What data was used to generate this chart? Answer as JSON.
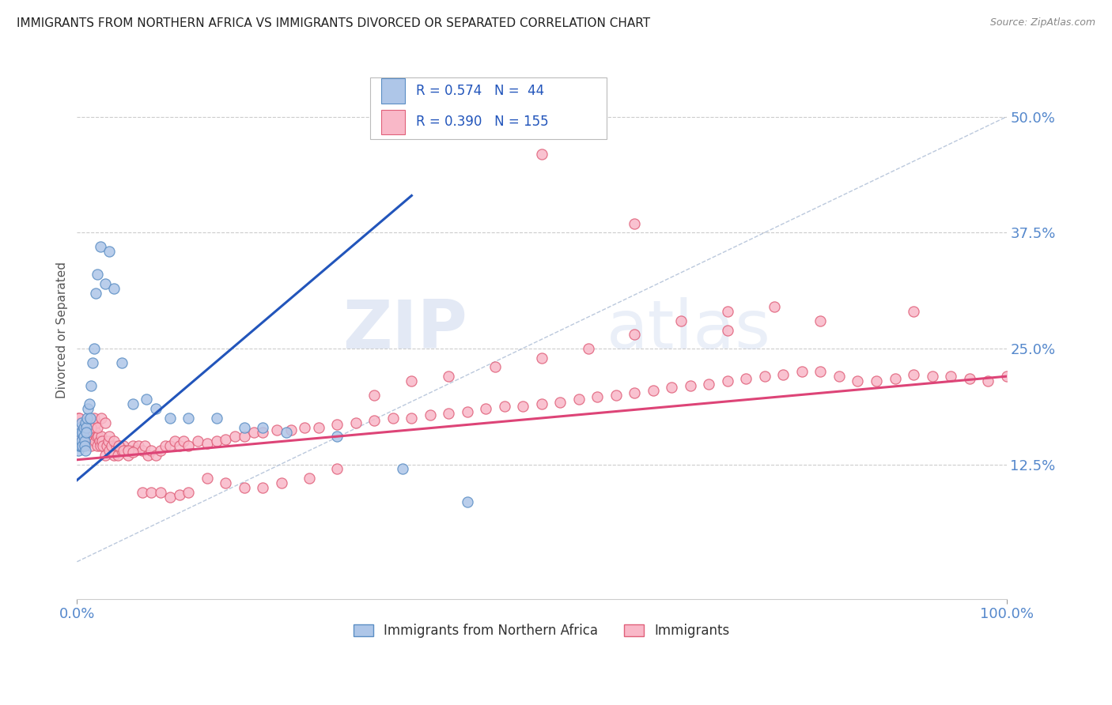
{
  "title": "IMMIGRANTS FROM NORTHERN AFRICA VS IMMIGRANTS DIVORCED OR SEPARATED CORRELATION CHART",
  "source": "Source: ZipAtlas.com",
  "ylabel": "Divorced or Separated",
  "xlim": [
    0,
    1.0
  ],
  "ylim": [
    -0.02,
    0.56
  ],
  "xticks": [
    0.0,
    1.0
  ],
  "xticklabels": [
    "0.0%",
    "100.0%"
  ],
  "yticks": [
    0.125,
    0.25,
    0.375,
    0.5
  ],
  "yticklabels": [
    "12.5%",
    "25.0%",
    "37.5%",
    "50.0%"
  ],
  "legend_label1": "Immigrants from Northern Africa",
  "legend_label2": "Immigrants",
  "watermark_zip": "ZIP",
  "watermark_atlas": "atlas",
  "blue_fill": "#aec6e8",
  "blue_edge": "#5b8ec4",
  "pink_fill": "#f9b8c8",
  "pink_edge": "#e0607a",
  "blue_line_color": "#2255bb",
  "pink_line_color": "#dd4477",
  "diag_color": "#aabbd4",
  "blue_scatter_x": [
    0.001,
    0.002,
    0.003,
    0.003,
    0.004,
    0.004,
    0.005,
    0.005,
    0.006,
    0.006,
    0.007,
    0.007,
    0.008,
    0.008,
    0.009,
    0.009,
    0.01,
    0.01,
    0.011,
    0.012,
    0.013,
    0.014,
    0.015,
    0.017,
    0.018,
    0.02,
    0.022,
    0.025,
    0.03,
    0.035,
    0.04,
    0.048,
    0.06,
    0.075,
    0.085,
    0.1,
    0.12,
    0.15,
    0.18,
    0.2,
    0.225,
    0.28,
    0.35,
    0.42
  ],
  "blue_scatter_y": [
    0.14,
    0.145,
    0.155,
    0.165,
    0.145,
    0.16,
    0.15,
    0.17,
    0.16,
    0.145,
    0.165,
    0.155,
    0.15,
    0.145,
    0.14,
    0.17,
    0.165,
    0.16,
    0.175,
    0.185,
    0.19,
    0.175,
    0.21,
    0.235,
    0.25,
    0.31,
    0.33,
    0.36,
    0.32,
    0.355,
    0.315,
    0.235,
    0.19,
    0.195,
    0.185,
    0.175,
    0.175,
    0.175,
    0.165,
    0.165,
    0.16,
    0.155,
    0.12,
    0.085
  ],
  "pink_scatter_x": [
    0.001,
    0.001,
    0.002,
    0.002,
    0.003,
    0.003,
    0.004,
    0.004,
    0.005,
    0.005,
    0.006,
    0.006,
    0.007,
    0.008,
    0.009,
    0.01,
    0.01,
    0.011,
    0.012,
    0.013,
    0.014,
    0.015,
    0.015,
    0.016,
    0.017,
    0.018,
    0.019,
    0.02,
    0.02,
    0.021,
    0.022,
    0.023,
    0.024,
    0.025,
    0.026,
    0.027,
    0.028,
    0.03,
    0.032,
    0.034,
    0.035,
    0.037,
    0.04,
    0.042,
    0.044,
    0.046,
    0.048,
    0.05,
    0.052,
    0.055,
    0.058,
    0.06,
    0.063,
    0.066,
    0.07,
    0.073,
    0.076,
    0.08,
    0.085,
    0.09,
    0.095,
    0.1,
    0.105,
    0.11,
    0.115,
    0.12,
    0.13,
    0.14,
    0.15,
    0.16,
    0.17,
    0.18,
    0.19,
    0.2,
    0.215,
    0.23,
    0.245,
    0.26,
    0.28,
    0.3,
    0.32,
    0.34,
    0.36,
    0.38,
    0.4,
    0.42,
    0.44,
    0.46,
    0.48,
    0.5,
    0.52,
    0.54,
    0.56,
    0.58,
    0.6,
    0.62,
    0.64,
    0.66,
    0.68,
    0.7,
    0.72,
    0.74,
    0.76,
    0.78,
    0.8,
    0.82,
    0.84,
    0.86,
    0.88,
    0.9,
    0.92,
    0.94,
    0.96,
    0.98,
    1.0,
    0.002,
    0.004,
    0.006,
    0.008,
    0.01,
    0.012,
    0.015,
    0.018,
    0.022,
    0.026,
    0.03,
    0.035,
    0.04,
    0.045,
    0.05,
    0.055,
    0.06,
    0.07,
    0.08,
    0.09,
    0.1,
    0.11,
    0.12,
    0.14,
    0.16,
    0.18,
    0.2,
    0.22,
    0.25,
    0.28,
    0.32,
    0.36,
    0.4,
    0.45,
    0.5,
    0.55,
    0.6,
    0.65,
    0.7,
    0.75,
    0.5,
    0.6,
    0.7,
    0.8,
    0.9
  ],
  "pink_scatter_y": [
    0.165,
    0.175,
    0.16,
    0.15,
    0.155,
    0.17,
    0.145,
    0.16,
    0.155,
    0.165,
    0.145,
    0.16,
    0.155,
    0.165,
    0.15,
    0.16,
    0.17,
    0.155,
    0.165,
    0.155,
    0.15,
    0.145,
    0.155,
    0.16,
    0.155,
    0.165,
    0.15,
    0.16,
    0.17,
    0.155,
    0.145,
    0.155,
    0.15,
    0.145,
    0.155,
    0.15,
    0.145,
    0.135,
    0.145,
    0.15,
    0.14,
    0.145,
    0.135,
    0.145,
    0.135,
    0.145,
    0.14,
    0.145,
    0.14,
    0.135,
    0.14,
    0.145,
    0.14,
    0.145,
    0.14,
    0.145,
    0.135,
    0.14,
    0.135,
    0.14,
    0.145,
    0.145,
    0.15,
    0.145,
    0.15,
    0.145,
    0.15,
    0.148,
    0.15,
    0.152,
    0.155,
    0.155,
    0.16,
    0.16,
    0.162,
    0.162,
    0.165,
    0.165,
    0.168,
    0.17,
    0.172,
    0.175,
    0.175,
    0.178,
    0.18,
    0.182,
    0.185,
    0.188,
    0.188,
    0.19,
    0.192,
    0.195,
    0.198,
    0.2,
    0.202,
    0.205,
    0.208,
    0.21,
    0.212,
    0.215,
    0.218,
    0.22,
    0.222,
    0.225,
    0.225,
    0.22,
    0.215,
    0.215,
    0.218,
    0.222,
    0.22,
    0.22,
    0.218,
    0.215,
    0.22,
    0.175,
    0.165,
    0.155,
    0.165,
    0.155,
    0.16,
    0.165,
    0.175,
    0.165,
    0.175,
    0.17,
    0.155,
    0.15,
    0.145,
    0.14,
    0.14,
    0.138,
    0.095,
    0.095,
    0.095,
    0.09,
    0.092,
    0.095,
    0.11,
    0.105,
    0.1,
    0.1,
    0.105,
    0.11,
    0.12,
    0.2,
    0.215,
    0.22,
    0.23,
    0.24,
    0.25,
    0.265,
    0.28,
    0.29,
    0.295,
    0.46,
    0.385,
    0.27,
    0.28,
    0.29
  ],
  "blue_line_x": [
    0.0,
    0.36
  ],
  "blue_line_y": [
    0.108,
    0.415
  ],
  "pink_line_x": [
    0.0,
    1.0
  ],
  "pink_line_y": [
    0.13,
    0.22
  ],
  "diag_line_x": [
    0.0,
    1.0
  ],
  "diag_line_y": [
    0.02,
    0.5
  ],
  "figsize": [
    14.06,
    8.92
  ],
  "dpi": 100
}
